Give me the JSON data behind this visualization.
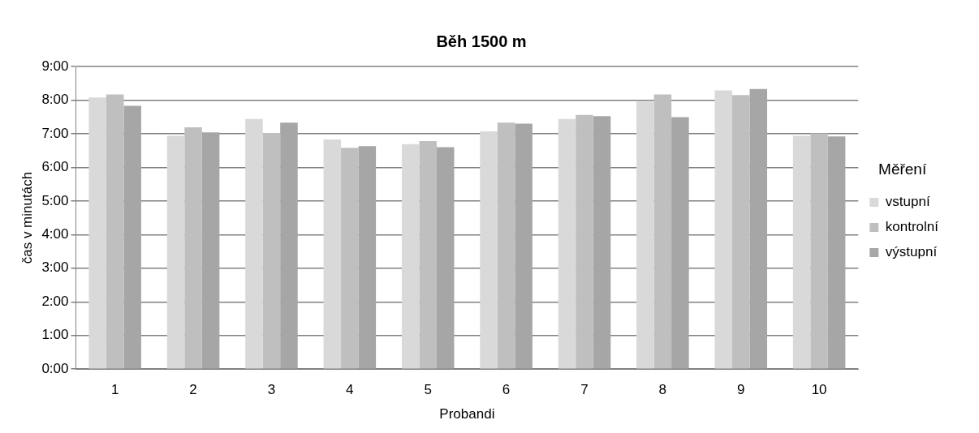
{
  "chart_data": {
    "type": "bar",
    "title": "Běh 1500 m",
    "xlabel": "Probandi",
    "ylabel": "čas v minutách",
    "legend_title": "Měření",
    "legend": "right",
    "grid": "y",
    "categories": [
      "1",
      "2",
      "3",
      "4",
      "5",
      "6",
      "7",
      "8",
      "9",
      "10"
    ],
    "series": [
      {
        "name": "vstupní",
        "color": "#d9d9d9",
        "values": [
          8.08,
          6.94,
          7.44,
          6.83,
          6.69,
          7.07,
          7.44,
          7.96,
          8.29,
          6.94
        ]
      },
      {
        "name": "kontrolní",
        "color": "#bfbfbf",
        "values": [
          8.17,
          7.19,
          7.02,
          6.58,
          6.78,
          7.33,
          7.56,
          8.17,
          8.15,
          7.01
        ]
      },
      {
        "name": "výstupní",
        "color": "#a6a6a6",
        "values": [
          7.83,
          7.04,
          7.33,
          6.63,
          6.6,
          7.3,
          7.52,
          7.49,
          8.33,
          6.92
        ]
      }
    ],
    "ylim": [
      0,
      9
    ],
    "yticks": [
      {
        "value": 0,
        "label": "0:00"
      },
      {
        "value": 1,
        "label": "1:00"
      },
      {
        "value": 2,
        "label": "2:00"
      },
      {
        "value": 3,
        "label": "3:00"
      },
      {
        "value": 4,
        "label": "4:00"
      },
      {
        "value": 5,
        "label": "5:00"
      },
      {
        "value": 6,
        "label": "6:00"
      },
      {
        "value": 7,
        "label": "7:00"
      },
      {
        "value": 8,
        "label": "8:00"
      },
      {
        "value": 9,
        "label": "9:00"
      }
    ]
  }
}
